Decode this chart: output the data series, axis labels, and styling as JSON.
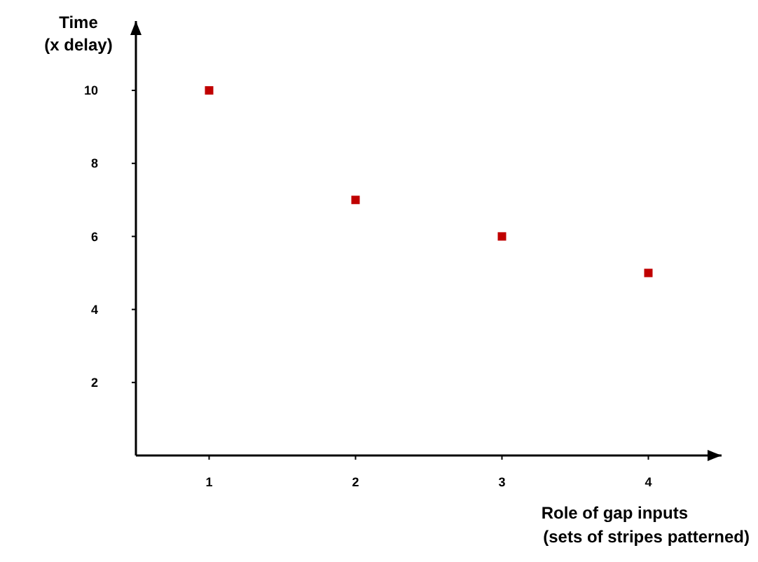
{
  "chart_data": {
    "type": "scatter",
    "xlabel": "Role of gap inputs\n(sets of stripes patterned)",
    "ylabel": "Time\n(x delay)",
    "x": [
      1,
      2,
      3,
      4
    ],
    "series": [
      {
        "color": "#c00000",
        "values": [
          10,
          7,
          6,
          5
        ]
      }
    ],
    "xlim": [
      0.5,
      4.5
    ],
    "xticks": [
      1,
      2,
      3,
      4
    ],
    "ylim": [
      0,
      11.9
    ],
    "yticks": [
      2,
      4,
      6,
      8,
      10
    ],
    "grid": false,
    "marker": "square"
  }
}
